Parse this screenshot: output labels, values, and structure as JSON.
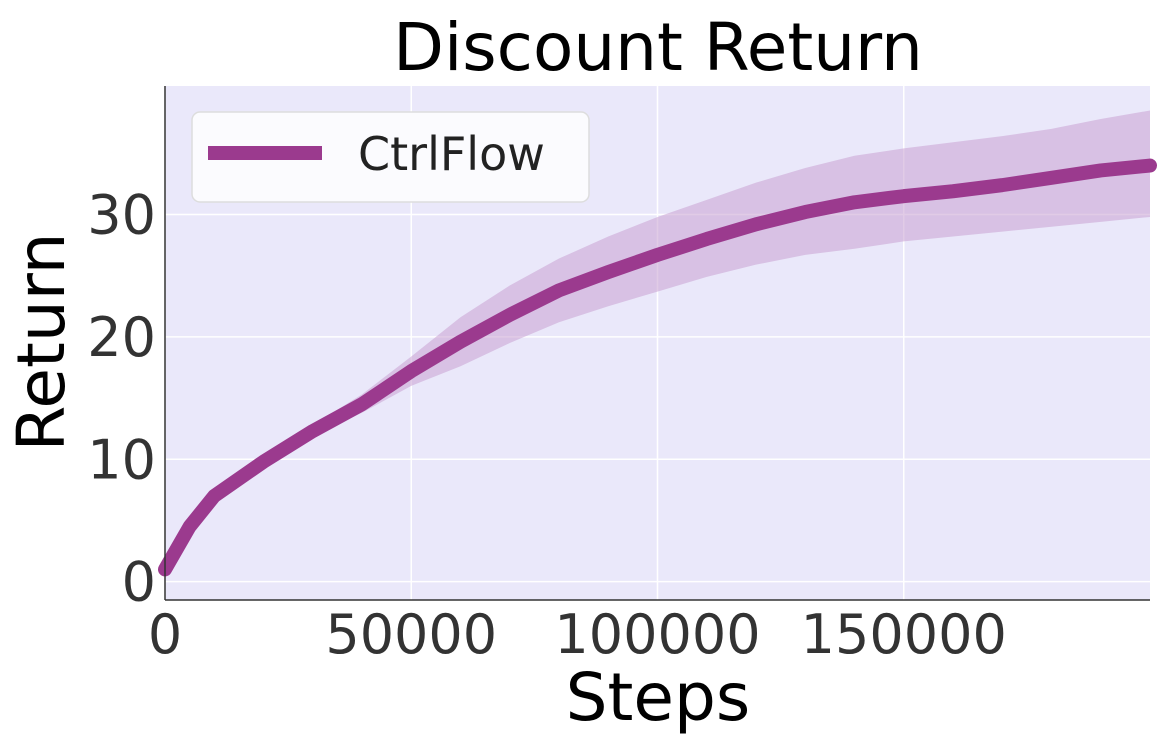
{
  "chart_data": {
    "type": "line",
    "title": "Discount Return",
    "xlabel": "Steps",
    "ylabel": "Return",
    "xlim": [
      0,
      200000
    ],
    "ylim": [
      -1.5,
      40.5
    ],
    "x_ticks": [
      0,
      50000,
      100000,
      150000
    ],
    "x_tick_labels": [
      "0",
      "50000",
      "100000",
      "150000"
    ],
    "y_ticks": [
      0,
      10,
      20,
      30
    ],
    "y_tick_labels": [
      "0",
      "10",
      "20",
      "30"
    ],
    "grid": true,
    "legend_position": "top-left",
    "background_color": "#eae8fa",
    "series": [
      {
        "name": "CtrlFlow",
        "color": "#9b3a8e",
        "band_color": "#c8a0d2",
        "x": [
          0,
          5000,
          10000,
          20000,
          30000,
          40000,
          50000,
          60000,
          70000,
          80000,
          90000,
          100000,
          110000,
          120000,
          130000,
          140000,
          150000,
          160000,
          170000,
          180000,
          190000,
          200000
        ],
        "y": [
          1.0,
          4.5,
          7.0,
          9.8,
          12.3,
          14.5,
          17.2,
          19.6,
          21.8,
          23.8,
          25.3,
          26.7,
          28.0,
          29.2,
          30.2,
          31.0,
          31.5,
          31.9,
          32.4,
          33.0,
          33.6,
          34.0
        ],
        "lower": [
          1.0,
          4.3,
          6.8,
          9.5,
          11.9,
          13.8,
          16.0,
          17.6,
          19.5,
          21.2,
          22.5,
          23.7,
          24.9,
          25.9,
          26.7,
          27.2,
          27.8,
          28.2,
          28.6,
          29.0,
          29.4,
          29.8
        ],
        "upper": [
          1.0,
          4.7,
          7.2,
          10.1,
          12.8,
          15.3,
          18.4,
          21.6,
          24.2,
          26.4,
          28.2,
          29.8,
          31.2,
          32.6,
          33.8,
          34.8,
          35.4,
          35.9,
          36.4,
          37.0,
          37.8,
          38.5
        ]
      }
    ]
  }
}
